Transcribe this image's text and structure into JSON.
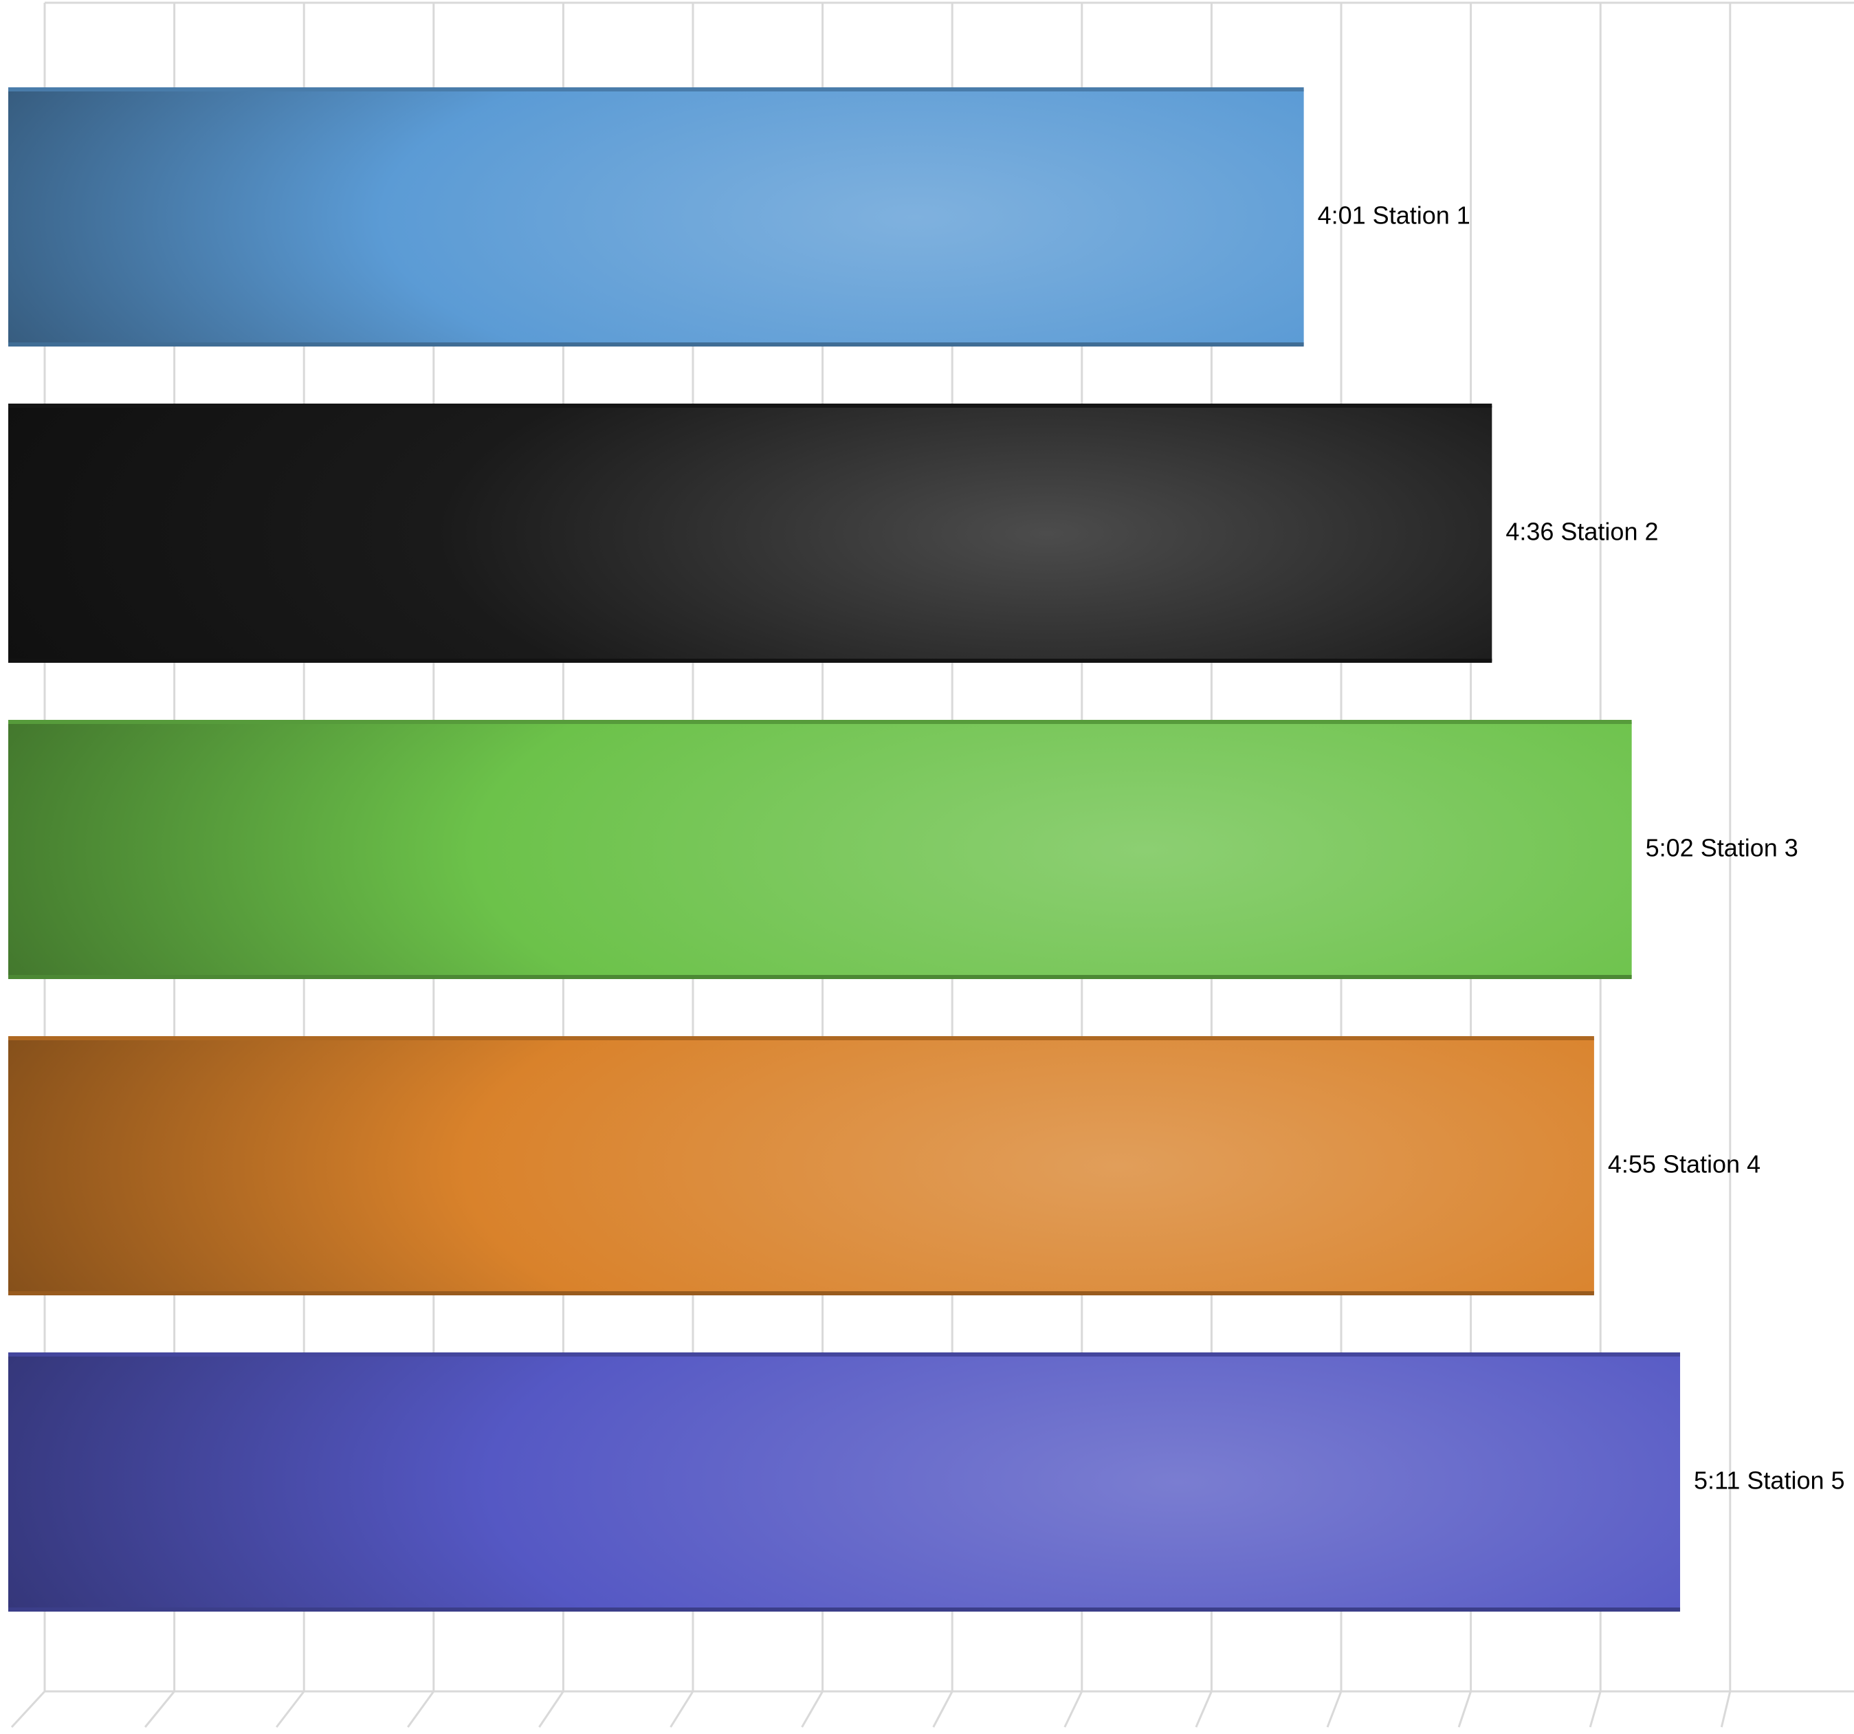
{
  "chart_data": {
    "type": "bar",
    "orientation": "horizontal",
    "x_unit": "minutes:seconds",
    "xlim_seconds": [
      0,
      325
    ],
    "grid": true,
    "legend": "none",
    "categories": [
      "Station 1",
      "Station 2",
      "Station 3",
      "Station 4",
      "Station 5"
    ],
    "values": [
      241,
      276,
      302,
      295,
      311
    ],
    "data_labels": [
      "4:01 Station 1",
      "4:36 Station 2",
      "5:02 Station 3",
      "4:55 Station 4",
      "5:11 Station 5"
    ],
    "colors": [
      "#5b9bd5",
      "#1a1a1a",
      "#6cc24a",
      "#d9822b",
      "#5558c4"
    ]
  }
}
